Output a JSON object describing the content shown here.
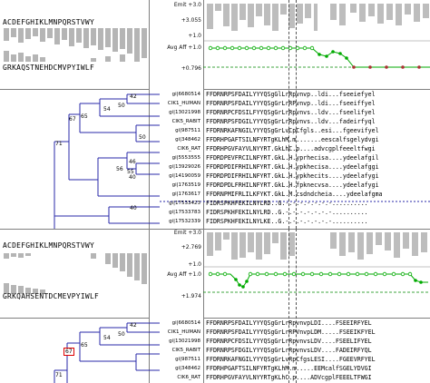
{
  "panel1": {
    "logo_top": "ACDEFGHIKLMNPQRSTVWY",
    "logo_bottom": "GRKAQSTNEHDCMVPYIWLF",
    "labels": {
      "emit": "Emit +3.0",
      "emit_val": "+3.055",
      "one": "+1.0",
      "avg": "Avg Aff +1.0",
      "bottom": "+0.796"
    },
    "tree_support": [
      "71",
      "67",
      "65",
      "54",
      "50",
      "42",
      "56",
      "55",
      "46",
      "40",
      "50",
      "40"
    ],
    "leaves": [
      {
        "name": "gi|6680514",
        "seq": "FFDRNRPSFDAILYYYQSgGlLrRpvnvp..ldi...fseeiefyel"
      },
      {
        "name": "CIK1_HUMAN",
        "seq": "FFDRNRPSFDAILYYYQSgGrLrRPvnvp..ldi...fseeiffyel"
      },
      {
        "name": "gi|13021998",
        "seq": "FFDRNRPCFDSILFYYQSgGrLrRpvnvs..ldv...fseelifyel"
      },
      {
        "name": "CIK5_RABIT",
        "seq": "FFDRNRPSFDGILYYYQSgGrLrRpvnvs..ldv...fadeirfyql"
      },
      {
        "name": "gi|987511",
        "seq": "FFDRNRKAFNGILYYYQSgGrLvCpCfgls..esi...fgeevifyel"
      },
      {
        "name": "gi|348462",
        "seq": "FFDRHPGAFTSILNFYRTgKLhM.m.......eescalfsgelydvgi"
      },
      {
        "name": "CIK6_RAT",
        "seq": "FFDRHPGVFAYVLNYYRT.GkLhC.p....advcgplfeeeltfwgi"
      },
      {
        "name": "gi|5553555",
        "seq": "FFDRDPEVFRCILNFYRT.GkL.H.yprhecisa....ydeelafgil"
      },
      {
        "name": "gi|13929026",
        "seq": "FFDRDPDIFRHILNFYRT.GkL.H.ypkhecisa....ydeelafggi"
      },
      {
        "name": "gi|14190059",
        "seq": "FFDRDPDIFRHILNFYRT.GkL.H.ypkhecits....ydeelafygi"
      },
      {
        "name": "gi|1763519",
        "seq": "FFDRDPDLFRHILNFYRT.GkL.H.fpknecvsa....ydeelafygi"
      },
      {
        "name": "gi|1763617",
        "seq": "FFDRNPMIFRLILKFYKT.GkL.M.csdndcheia....ydeelafgma"
      },
      {
        "name": "gi|17533423",
        "seq": "FIDRSPKHFEKILNYLRD..G.-.-.-.-.-.-.-.........."
      },
      {
        "name": "gi|17533783",
        "seq": "FIDRSPKHFEKILNYLRD..G.-.-.-.-.-.-.-.........."
      },
      {
        "name": "gi|17532339",
        "seq": "FIDRSPKHFEKILNYLKE..G.-.-.-.-.-.-.-.........."
      }
    ]
  },
  "panel2": {
    "logo_top": "ACDEFGHIKLMNPQRSTVWY",
    "logo_bottom": "GRKQAHSENTDCMEVPYIWLF",
    "labels": {
      "emit": "Emit +3.0",
      "emit_val": "+2.769",
      "one": "+1.0",
      "avg": "Avg Aff +1.0",
      "bottom": "+1.974"
    },
    "tree_support": [
      "67",
      "71",
      "65",
      "54",
      "50",
      "42"
    ],
    "leaves": [
      {
        "name": "gi|6680514",
        "seq": "FFDRNRPSFDAILYYYQSgGrLrRpvnvpLDI....FSEEIRFYEL"
      },
      {
        "name": "CIK1_HUMAN",
        "seq": "FFDRNRPSFDAILYYYQSgGrLrRPVnvpLDM.....FSEEIKFYEL"
      },
      {
        "name": "gi|13021998",
        "seq": "FFDRNRPCFDSILYYYQSgGrLrRpvnvsLDV....FSEELIFYEL"
      },
      {
        "name": "CIK5_RABIT",
        "seq": "FFDRNRPSFDGILYYYQSgGrLrRpvnvsLDV....FADEIRFYQL"
      },
      {
        "name": "gi|987511",
        "seq": "FFDRNRKAFNGILYYYQSgGrLvRpCfgsLESI....FGEEVRFYEL"
      },
      {
        "name": "gi|348462",
        "seq": "FFDRHPGAFTSILNFYRTgKLhM.m.....EEMcalfSGELYDVGI"
      },
      {
        "name": "CIK6_RAT",
        "seq": "FFDRHPGVFAYVLNYYRTgKLhC.p....ADVcgplFEEELTFWGI"
      }
    ]
  }
}
